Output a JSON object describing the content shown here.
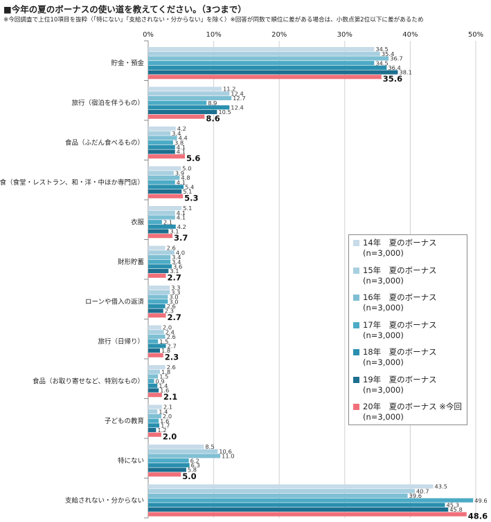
{
  "title": "■今年の夏のボーナスの使い道を教えてください。（3つまで）",
  "note": "※今回調査で上位10項目を抜粋（「特にない」「支給されない・分からない」を除く）※回答が同数で順位に差がある場合は、小数点第2位以下に差があるため",
  "chart_data": {
    "type": "bar",
    "orientation": "horizontal",
    "xlim": [
      0,
      50
    ],
    "ticks": [
      "0%",
      "10%",
      "20%",
      "30%",
      "40%",
      "50%"
    ],
    "tick_values": [
      0,
      10,
      20,
      30,
      40,
      50
    ],
    "grid": true,
    "legend_position": "right",
    "categories": [
      "貯金・預金",
      "旅行（宿泊を伴うもの）",
      "食品（ふだん食べるもの）",
      "外食（食堂・レストラン、和・洋・中ほか専門店）",
      "衣服",
      "財形貯蓄",
      "ローンや借入の返済",
      "旅行（日帰り）",
      "食品（お取り寄せなど、特別なもの）",
      "子どもの教育",
      "特にない",
      "支給されない・分からない"
    ],
    "series": [
      {
        "name": "14年　夏のボーナス",
        "n": "(n=3,000)",
        "color": "#c7dbe8",
        "values": [
          34.5,
          11.2,
          4.2,
          5.0,
          5.1,
          2.6,
          3.3,
          2.0,
          2.6,
          2.1,
          8.5,
          43.5
        ]
      },
      {
        "name": "15年　夏のボーナス",
        "n": "(n=3,000)",
        "color": "#a8cfdf",
        "values": [
          35.4,
          12.4,
          3.4,
          3.9,
          4.1,
          4.0,
          3.3,
          2.4,
          1.8,
          1.4,
          10.6,
          40.7
        ]
      },
      {
        "name": "16年　夏のボーナス",
        "n": "(n=3,000)",
        "color": "#7fbfd4",
        "values": [
          36.7,
          12.7,
          4.4,
          4.8,
          4.1,
          3.4,
          3.0,
          2.6,
          1.5,
          2.0,
          11.0,
          39.6
        ]
      },
      {
        "name": "17年　夏のボーナス",
        "n": "(n=3,000)",
        "color": "#4cabc6",
        "values": [
          34.5,
          8.9,
          3.8,
          4.1,
          2.1,
          3.4,
          3.0,
          1.5,
          0.9,
          1.6,
          6.2,
          49.6
        ]
      },
      {
        "name": "18年　夏のボーナス",
        "n": "(n=3,000)",
        "color": "#2a8fae",
        "values": [
          36.4,
          12.4,
          4.1,
          5.4,
          4.2,
          3.6,
          2.6,
          2.7,
          1.4,
          1.7,
          6.3,
          45.3
        ]
      },
      {
        "name": "19年　夏のボーナス",
        "n": "(n=3,000)",
        "color": "#1d6f8f",
        "values": [
          38.1,
          10.5,
          4.1,
          5.1,
          3.1,
          3.1,
          2.3,
          1.8,
          1.6,
          1.2,
          5.8,
          45.8
        ]
      },
      {
        "name": "20年　夏のボーナス ※今回",
        "n": "(n=3,000)",
        "color": "#f0707a",
        "values": [
          35.6,
          8.6,
          5.6,
          5.3,
          3.7,
          2.7,
          2.7,
          2.3,
          2.1,
          2.0,
          5.0,
          48.6
        ]
      }
    ]
  }
}
